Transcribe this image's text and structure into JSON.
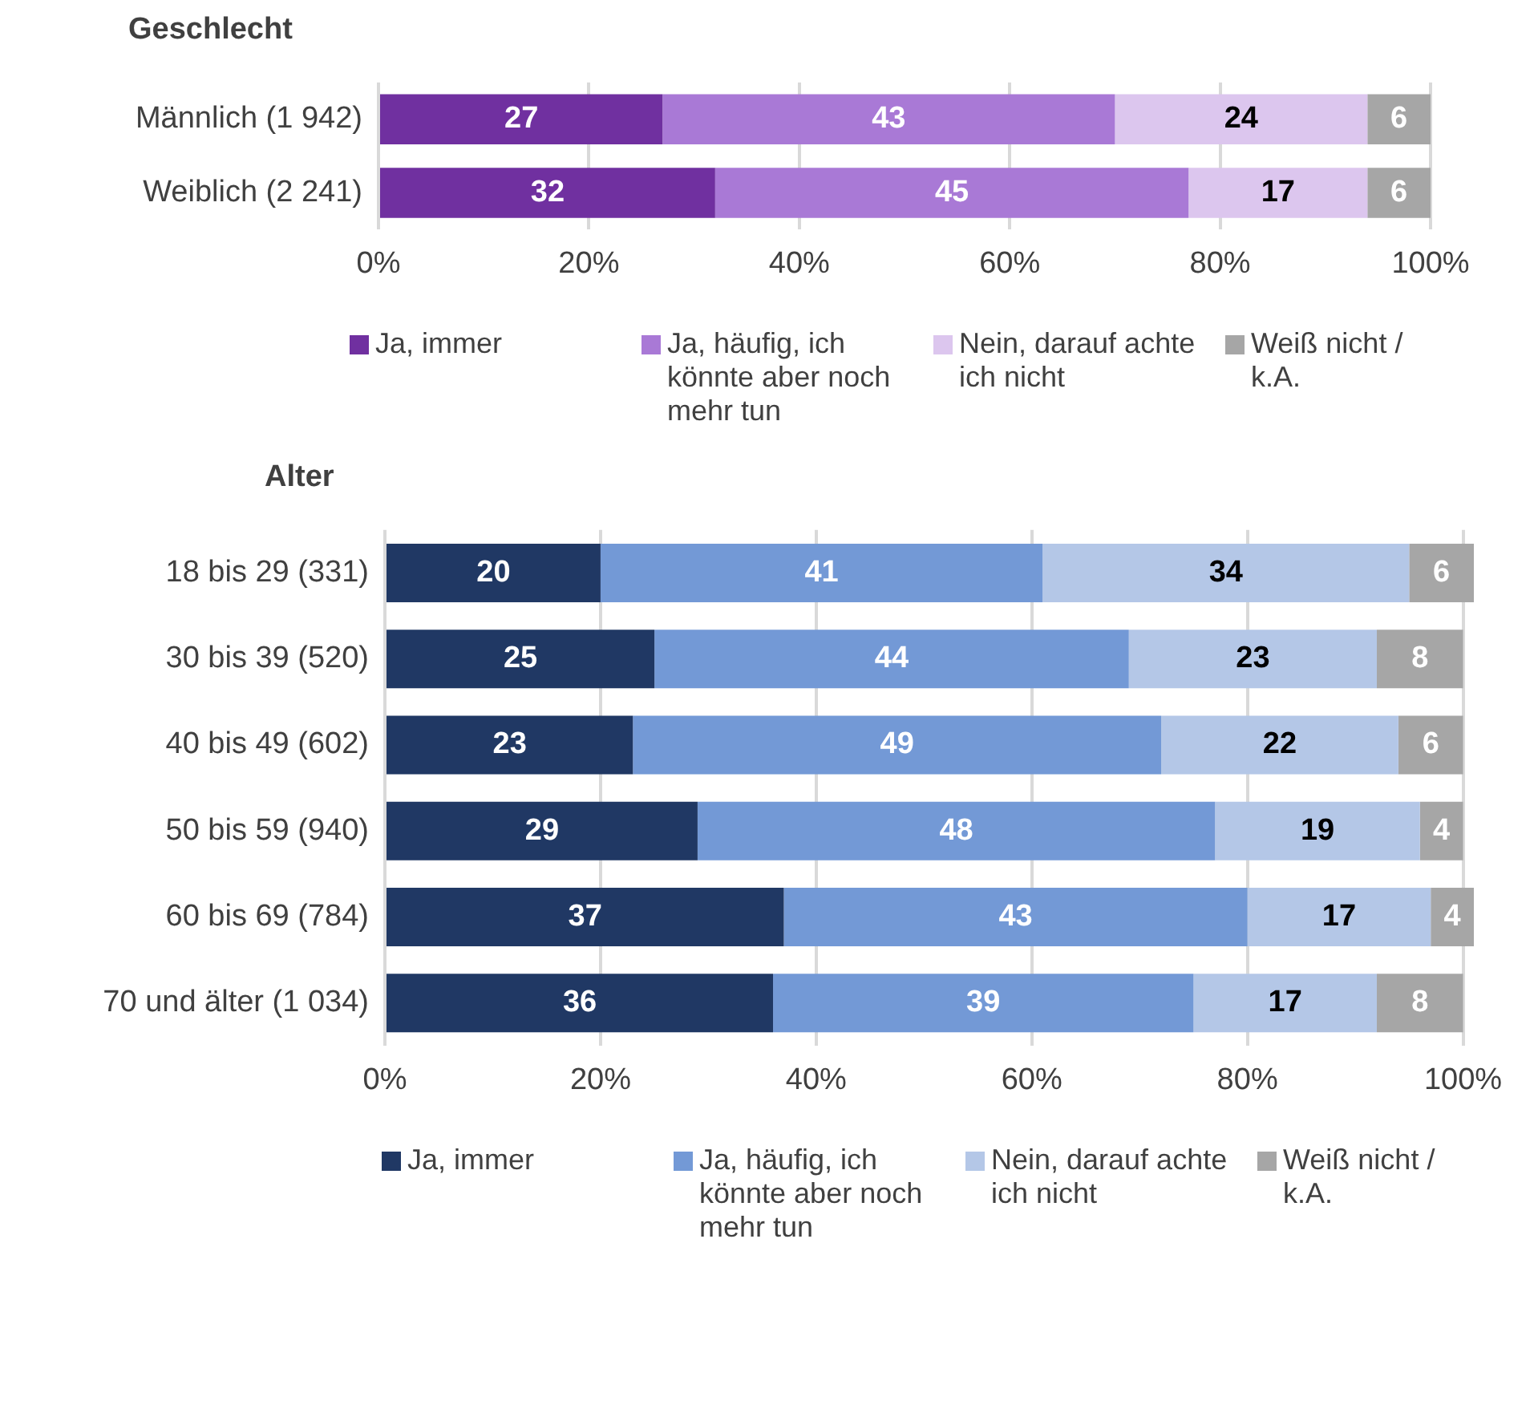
{
  "chart_data": [
    {
      "type": "bar",
      "orientation": "horizontal",
      "stacked": true,
      "title": "Geschlecht",
      "categories": [
        "Männlich (1 942)",
        "Weiblich (2 241)"
      ],
      "series": [
        {
          "name": "Ja, immer",
          "color": "#7030a0",
          "values": [
            27,
            32
          ]
        },
        {
          "name": "Ja, häufig, ich könnte aber noch mehr tun",
          "color": "#a979d6",
          "values": [
            43,
            45
          ]
        },
        {
          "name": "Nein, darauf achte ich nicht",
          "color": "#dcc6ee",
          "values": [
            24,
            17
          ]
        },
        {
          "name": "Weiß nicht / k.A.",
          "color": "#a6a6a6",
          "values": [
            6,
            6
          ]
        }
      ],
      "xlim": [
        0,
        100
      ],
      "xticks": [
        {
          "value": 0,
          "label": "0%"
        },
        {
          "value": 20,
          "label": "20%"
        },
        {
          "value": 40,
          "label": "40%"
        },
        {
          "value": 60,
          "label": "60%"
        },
        {
          "value": 80,
          "label": "80%"
        },
        {
          "value": 100,
          "label": "100%"
        }
      ],
      "grid": "x",
      "legend": "bottom",
      "data_labels": true
    },
    {
      "type": "bar",
      "orientation": "horizontal",
      "stacked": true,
      "title": "Alter",
      "categories": [
        "18 bis 29 (331)",
        "30 bis 39 (520)",
        "40 bis 49 (602)",
        "50 bis 59 (940)",
        "60 bis 69 (784)",
        "70 und älter (1 034)"
      ],
      "series": [
        {
          "name": "Ja, immer",
          "color": "#203864",
          "values": [
            20,
            25,
            23,
            29,
            37,
            36
          ]
        },
        {
          "name": "Ja, häufig, ich könnte aber noch mehr tun",
          "color": "#7399d6",
          "values": [
            41,
            44,
            49,
            48,
            43,
            39
          ]
        },
        {
          "name": "Nein, darauf achte ich nicht",
          "color": "#b4c7e7",
          "values": [
            34,
            23,
            22,
            19,
            17,
            17
          ]
        },
        {
          "name": "Weiß nicht / k.A.",
          "color": "#a6a6a6",
          "values": [
            6,
            8,
            6,
            4,
            4,
            8
          ]
        }
      ],
      "xlim": [
        0,
        101
      ],
      "xticks": [
        {
          "value": 0,
          "label": "0%"
        },
        {
          "value": 20,
          "label": "20%"
        },
        {
          "value": 40,
          "label": "40%"
        },
        {
          "value": 60,
          "label": "60%"
        },
        {
          "value": 80,
          "label": "80%"
        },
        {
          "value": 100,
          "label": "100%"
        }
      ],
      "grid": "x",
      "legend": "bottom",
      "data_labels": true
    }
  ]
}
